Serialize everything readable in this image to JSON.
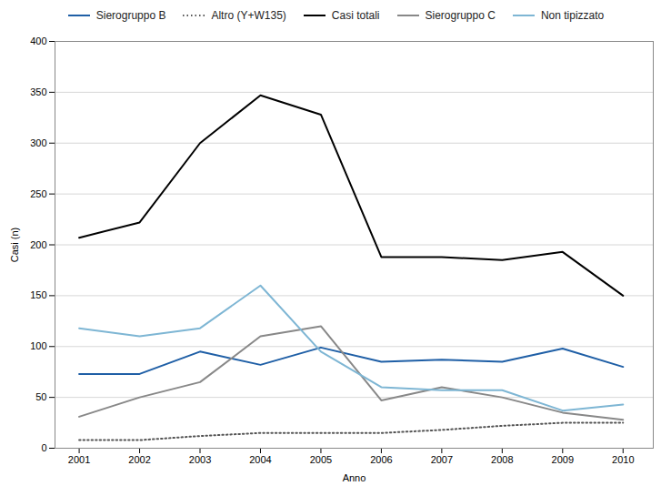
{
  "chart_data": {
    "type": "line",
    "x": [
      2001,
      2002,
      2003,
      2004,
      2005,
      2006,
      2007,
      2008,
      2009,
      2010
    ],
    "xlabel": "Anno",
    "ylabel": "Casi (n)",
    "xlim": [
      2000.6,
      2010.5
    ],
    "xticks": [
      2001,
      2002,
      2003,
      2004,
      2005,
      2006,
      2007,
      2008,
      2009,
      2010
    ],
    "ylim": [
      0,
      400
    ],
    "yticks": [
      0,
      50,
      100,
      150,
      200,
      250,
      300,
      350,
      400
    ],
    "grid": true,
    "legend": "top",
    "series": [
      {
        "name": "Sierogruppo B",
        "color": "#1f5fa6",
        "line_style": "solid",
        "values": [
          73,
          73,
          95,
          82,
          99,
          85,
          87,
          85,
          98,
          80
        ]
      },
      {
        "name": "Altro (Y+W135)",
        "color": "#555555",
        "line_style": "dotted",
        "values": [
          8,
          8,
          12,
          15,
          15,
          15,
          18,
          22,
          25,
          25
        ]
      },
      {
        "name": "Casi totali",
        "color": "#000000",
        "line_style": "solid",
        "values": [
          207,
          222,
          300,
          347,
          328,
          188,
          188,
          185,
          193,
          150
        ]
      },
      {
        "name": "Sierogruppo C",
        "color": "#888888",
        "line_style": "solid",
        "values": [
          31,
          50,
          65,
          110,
          120,
          47,
          60,
          50,
          35,
          28
        ]
      },
      {
        "name": "Non tipizzato",
        "color": "#7eb6d4",
        "line_style": "solid",
        "values": [
          118,
          110,
          118,
          160,
          95,
          60,
          57,
          57,
          37,
          43
        ]
      }
    ]
  }
}
